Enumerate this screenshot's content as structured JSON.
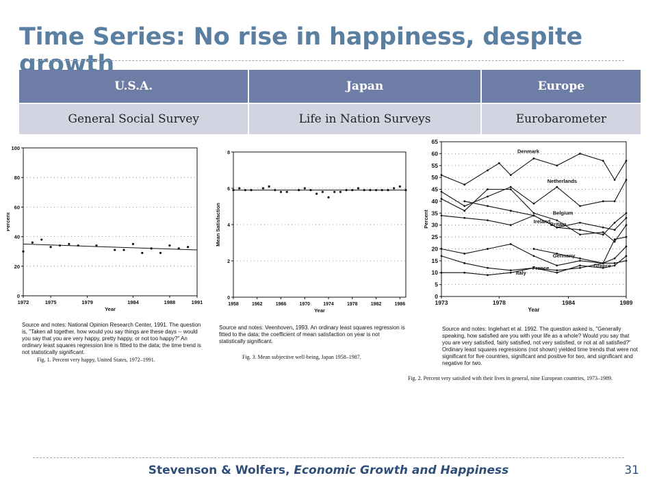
{
  "slide": {
    "title": "Time Series: No rise in happiness, despite growth",
    "footer_authors": "Stevenson & Wolfers, ",
    "footer_title": "Economic Growth and Happiness",
    "page_number": "31"
  },
  "table": {
    "headers": [
      "U.S.A.",
      "Japan",
      "Europe"
    ],
    "sources": [
      "General Social Survey",
      "Life in Nation Surveys",
      "Eurobarometer"
    ]
  },
  "panels": {
    "usa": {
      "note": "Source and notes: National Opinion Research Center, 1991. The question is, \"Taken all together, how would you say things are these days -- would you say that you are very happy, pretty happy, or not too happy?\" An ordinary least squares regression line is fitted to the data; the time trend is not statistically significant.",
      "caption": "Fig. 1. Percent very happy, United States, 1972–1991."
    },
    "japan": {
      "note": "Source and notes: Veenhoven, 1993. An ordinary least squares regression is fitted to the data; the coefficient of mean satisfaction on year is not statistically significant.",
      "caption": "Fig. 3. Mean subjective well-being, Japan 1958–1987."
    },
    "europe": {
      "note": "Source and notes: Inglehart et al. 1992. The question asked is, \"Generally speaking, how satisfied are you with your life as a whole? Would you say that you are very satisfied, fairly satisfied, not very satisfied, or not at all satisfied?\" Ordinary least squares regressions (not shown) yielded time trends that were not significant for five countries, significant and positive for two, and significant and negative for two.",
      "caption": "Fig. 2. Percent very satisfied with their lives in general, nine European countries, 1973–1989."
    }
  },
  "chart_data": [
    {
      "id": "usa",
      "type": "scatter",
      "title": "",
      "xlabel": "Year",
      "ylabel": "Percent",
      "xlim": [
        1972,
        1991
      ],
      "ylim": [
        0,
        100
      ],
      "x_ticks": [
        "1972",
        "1975",
        "1979",
        "1984",
        "1988",
        "1991"
      ],
      "y_ticks": [
        "0",
        "20",
        "40",
        "60",
        "80",
        "100"
      ],
      "grid": true,
      "series": [
        {
          "x": [
            1972,
            1973,
            1974,
            1975,
            1976,
            1977,
            1978,
            1980,
            1982,
            1983,
            1984,
            1985,
            1986,
            1987,
            1988,
            1989,
            1990
          ],
          "y": [
            30,
            36,
            38,
            33,
            34,
            35,
            34,
            34,
            31,
            31,
            35,
            29,
            32,
            29,
            34,
            32,
            33
          ]
        }
      ],
      "trend": {
        "x": [
          1972,
          1991
        ],
        "y": [
          35,
          31
        ]
      }
    },
    {
      "id": "japan",
      "type": "scatter",
      "title": "",
      "xlabel": "Year",
      "ylabel": "Mean Satisfaction",
      "xlim": [
        1958,
        1987
      ],
      "ylim": [
        0,
        8
      ],
      "x_ticks": [
        "1958",
        "1962",
        "1966",
        "1970",
        "1974",
        "1978",
        "1982",
        "1986"
      ],
      "y_ticks": [
        "0",
        "2",
        "4",
        "6",
        "8"
      ],
      "grid": true,
      "series": [
        {
          "x": [
            1958,
            1959,
            1960,
            1961,
            1963,
            1964,
            1965,
            1966,
            1967,
            1969,
            1970,
            1971,
            1972,
            1973,
            1974,
            1975,
            1976,
            1977,
            1978,
            1979,
            1980,
            1981,
            1982,
            1983,
            1984,
            1985,
            1986,
            1987
          ],
          "y": [
            5.9,
            6.0,
            5.9,
            5.9,
            6.0,
            6.1,
            5.9,
            5.8,
            5.8,
            5.9,
            6.0,
            5.9,
            5.7,
            5.8,
            5.5,
            5.8,
            5.8,
            5.9,
            5.9,
            6.0,
            5.9,
            5.9,
            5.9,
            5.9,
            5.9,
            6.0,
            6.1,
            5.9
          ]
        }
      ],
      "trend": {
        "x": [
          1958,
          1987
        ],
        "y": [
          5.9,
          5.9
        ]
      }
    },
    {
      "id": "europe",
      "type": "line",
      "title": "",
      "xlabel": "Year",
      "ylabel": "Percent",
      "xlim": [
        1973,
        1989
      ],
      "ylim": [
        0,
        65
      ],
      "x_ticks": [
        "1973",
        "1978",
        "1984",
        "1989"
      ],
      "y_ticks": [
        "0",
        "5",
        "10",
        "15",
        "20",
        "25",
        "30",
        "35",
        "40",
        "45",
        "50",
        "55",
        "60",
        "65"
      ],
      "grid": true,
      "series": [
        {
          "name": "Denmark",
          "x": [
            1973,
            1975,
            1977,
            1978,
            1979,
            1981,
            1983,
            1985,
            1987,
            1988,
            1989
          ],
          "y": [
            51,
            47,
            53,
            56,
            51,
            58,
            55,
            60,
            57,
            49,
            57
          ]
        },
        {
          "name": "Netherlands",
          "x": [
            1973,
            1975,
            1977,
            1979,
            1981,
            1983,
            1985,
            1987,
            1988,
            1989
          ],
          "y": [
            44,
            38,
            42,
            46,
            39,
            46,
            38,
            40,
            40,
            49
          ]
        },
        {
          "name": "Belgium",
          "x": [
            1973,
            1975,
            1977,
            1979,
            1981,
            1983,
            1985,
            1987,
            1988,
            1989
          ],
          "y": [
            41,
            36,
            45,
            45,
            35,
            32,
            26,
            27,
            23,
            30
          ]
        },
        {
          "name": "Ireland",
          "x": [
            1975,
            1977,
            1979,
            1981,
            1983,
            1985,
            1987,
            1988,
            1989
          ],
          "y": [
            40,
            38,
            36,
            34,
            29,
            28,
            26,
            31,
            35
          ]
        },
        {
          "name": "Britain",
          "x": [
            1973,
            1975,
            1977,
            1979,
            1981,
            1983,
            1985,
            1987,
            1988,
            1989
          ],
          "y": [
            34,
            33,
            32,
            30,
            34,
            29,
            31,
            29,
            28,
            33
          ]
        },
        {
          "name": "Germany",
          "x": [
            1973,
            1975,
            1977,
            1979,
            1981,
            1983,
            1985,
            1987,
            1988,
            1989
          ],
          "y": [
            20,
            18,
            20,
            22,
            17,
            13,
            15,
            14,
            16,
            21
          ]
        },
        {
          "name": "France",
          "x": [
            1973,
            1975,
            1977,
            1979,
            1981,
            1983,
            1985,
            1987,
            1988,
            1989
          ],
          "y": [
            17,
            14,
            12,
            11,
            12,
            10,
            13,
            12,
            13,
            17
          ]
        },
        {
          "name": "Greece",
          "x": [
            1981,
            1983,
            1985,
            1987,
            1988,
            1989
          ],
          "y": [
            20,
            18,
            16,
            14,
            24,
            25
          ]
        },
        {
          "name": "Italy",
          "x": [
            1973,
            1975,
            1977,
            1979,
            1981,
            1983,
            1985,
            1987,
            1988,
            1989
          ],
          "y": [
            10,
            10,
            9,
            10,
            12,
            11,
            12,
            14,
            14,
            15
          ]
        }
      ]
    }
  ]
}
